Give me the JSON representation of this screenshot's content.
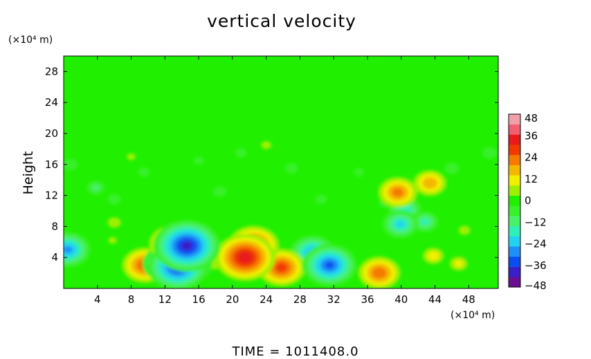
{
  "chart_data": {
    "type": "heatmap",
    "title": "vertical velocity",
    "ylabel": "Height",
    "y_unit": "(×10⁴ m)",
    "x_unit": "(×10⁴ m)",
    "xlim": [
      0,
      51.5
    ],
    "ylim": [
      0,
      30
    ],
    "x_ticks": [
      4,
      8,
      12,
      16,
      20,
      24,
      28,
      32,
      36,
      40,
      44,
      48
    ],
    "y_ticks": [
      4,
      8,
      12,
      16,
      20,
      24,
      28
    ],
    "colorbar": {
      "ticks": [
        48,
        36,
        24,
        12,
        0,
        -12,
        -24,
        -36,
        -48
      ],
      "range": [
        -48,
        48
      ],
      "colors": [
        "#6a0f8f",
        "#3a1fc8",
        "#0a4ef0",
        "#1f8ef5",
        "#24d2f0",
        "#2ff0b6",
        "#49f06a",
        "#39f02a",
        "#20f000",
        "#9ff000",
        "#f0f000",
        "#f5b800",
        "#f57a00",
        "#f03a00",
        "#e81a1a",
        "#f06070",
        "#f0a0a8"
      ]
    },
    "background_value": 0,
    "features": [
      {
        "x": 21.5,
        "y": 4.0,
        "value": 40
      },
      {
        "x": 22.5,
        "y": 5.5,
        "value": 34
      },
      {
        "x": 25.8,
        "y": 2.7,
        "value": 32
      },
      {
        "x": 9.6,
        "y": 3.0,
        "value": 30
      },
      {
        "x": 37.4,
        "y": 2.0,
        "value": 28
      },
      {
        "x": 14.6,
        "y": 5.5,
        "value": -44
      },
      {
        "x": 13.5,
        "y": 2.8,
        "value": -40
      },
      {
        "x": 12.0,
        "y": 3.2,
        "value": -30
      },
      {
        "x": 15.3,
        "y": 3.0,
        "value": -26
      },
      {
        "x": 31.5,
        "y": 3.0,
        "value": -36
      },
      {
        "x": 29.5,
        "y": 4.6,
        "value": -30
      },
      {
        "x": 0.5,
        "y": 5.0,
        "value": -30
      },
      {
        "x": 12.8,
        "y": 5.8,
        "value": 30
      },
      {
        "x": 39.6,
        "y": 12.4,
        "value": 26
      },
      {
        "x": 43.4,
        "y": 13.6,
        "value": 22
      },
      {
        "x": 40.4,
        "y": 10.2,
        "value": -22
      },
      {
        "x": 39.9,
        "y": 8.3,
        "value": -24
      },
      {
        "x": 42.8,
        "y": 8.6,
        "value": -18
      },
      {
        "x": 43.8,
        "y": 4.2,
        "value": 14
      },
      {
        "x": 46.8,
        "y": 3.2,
        "value": 12
      },
      {
        "x": 17.8,
        "y": 3.2,
        "value": 10
      },
      {
        "x": 5.8,
        "y": 6.2,
        "value": 6
      },
      {
        "x": 3.8,
        "y": 13.0,
        "value": -12
      },
      {
        "x": 0.8,
        "y": 16.0,
        "value": -10
      },
      {
        "x": 6.0,
        "y": 11.5,
        "value": -9
      },
      {
        "x": 9.5,
        "y": 15.0,
        "value": -8
      },
      {
        "x": 16.0,
        "y": 16.5,
        "value": -7
      },
      {
        "x": 18.5,
        "y": 12.5,
        "value": -9
      },
      {
        "x": 21.0,
        "y": 17.5,
        "value": -8
      },
      {
        "x": 27.0,
        "y": 15.5,
        "value": -9
      },
      {
        "x": 30.5,
        "y": 11.5,
        "value": -8
      },
      {
        "x": 35.0,
        "y": 15.0,
        "value": -7
      },
      {
        "x": 38.0,
        "y": 11.0,
        "value": -8
      },
      {
        "x": 46.0,
        "y": 15.5,
        "value": -10
      },
      {
        "x": 50.5,
        "y": 17.5,
        "value": -10
      },
      {
        "x": 6.0,
        "y": 8.5,
        "value": 9
      },
      {
        "x": 8.0,
        "y": 17.0,
        "value": 6
      },
      {
        "x": 24.0,
        "y": 18.5,
        "value": 7
      },
      {
        "x": 47.5,
        "y": 7.5,
        "value": 8
      }
    ]
  },
  "footer": {
    "time_label": "TIME = 1011408.0"
  }
}
